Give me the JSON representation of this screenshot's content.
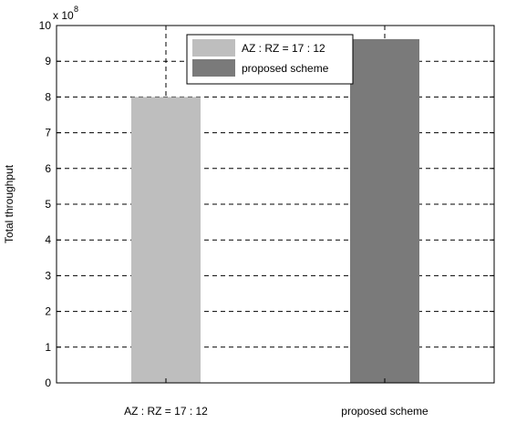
{
  "chart_data": {
    "type": "bar",
    "categories": [
      "AZ : RZ = 17 : 12",
      "proposed scheme"
    ],
    "series": [
      {
        "name": "AZ : RZ = 17 : 12",
        "values": [
          8.0,
          null
        ],
        "color": "#bebebe"
      },
      {
        "name": "proposed scheme",
        "values": [
          null,
          9.62
        ],
        "color": "#7a7a7a"
      }
    ],
    "ylabel": "Total throughput",
    "y_exponent_label": "x 10",
    "y_exponent_power": "8",
    "ylim": [
      0,
      10
    ],
    "yticks": [
      "0",
      "1",
      "2",
      "3",
      "4",
      "5",
      "6",
      "7",
      "8",
      "9",
      "10"
    ],
    "grid": true,
    "grid_style": "dashed",
    "legend_position": "top-center"
  }
}
